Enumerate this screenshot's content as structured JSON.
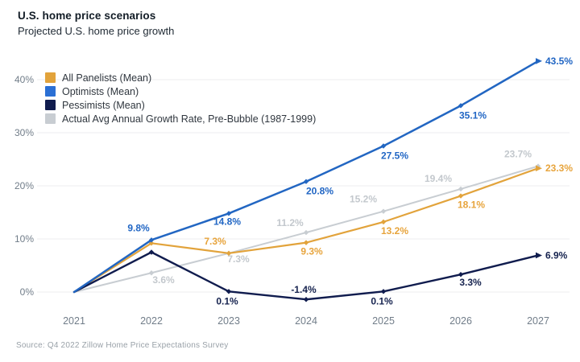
{
  "header": {
    "title": "U.S. home price scenarios",
    "subtitle": "Projected U.S. home price growth"
  },
  "source": "Source: Q4 2022 Zillow Home Price Expectations Survey",
  "colors": {
    "all_panelists": "#E2A33B",
    "optimists": "#2A6FD4",
    "pessimists": "#101C4E",
    "actual_avg": "#C8CDD2",
    "gridline": "#ECEDEF",
    "axis_text": "#717d89"
  },
  "legend": [
    {
      "label": "All Panelists (Mean)",
      "color": "#E2A33B"
    },
    {
      "label": "Optimists (Mean)",
      "color": "#2A6FD4"
    },
    {
      "label": "Pessimists (Mean)",
      "color": "#101C4E"
    },
    {
      "label": "Actual Avg Annual Growth Rate, Pre-Bubble (1987-1999)",
      "color": "#C8CDD2"
    }
  ],
  "chart_data": {
    "type": "line",
    "title": "U.S. home price scenarios",
    "xlabel": "",
    "ylabel": "",
    "x": [
      2021,
      2022,
      2023,
      2024,
      2025,
      2026,
      2027
    ],
    "ylim": [
      -3,
      46
    ],
    "grid": true,
    "legend_position": "top-left-inside",
    "yticks": {
      "values": [
        0,
        10,
        20,
        30,
        40
      ],
      "labels": [
        "0%",
        "10%",
        "20%",
        "30%",
        "40%"
      ]
    },
    "series": [
      {
        "name": "Actual Avg Annual Growth Rate, Pre-Bubble (1987-1999)",
        "color": "#C8CDD2",
        "label_color": "#C3C8CD",
        "stroke_width": 2,
        "end_arrow": false,
        "values": [
          0,
          3.6,
          7.3,
          11.2,
          15.2,
          19.4,
          23.7
        ],
        "labels": [
          null,
          "3.6%",
          "7.3%",
          "11.2%",
          "15.2%",
          "19.4%",
          "23.7%"
        ],
        "label_offsets": [
          null,
          [
            15,
            13
          ],
          [
            12,
            11
          ],
          [
            -20,
            -8
          ],
          [
            -25,
            -11
          ],
          [
            -28,
            -9
          ],
          [
            -25,
            -11
          ]
        ]
      },
      {
        "name": "All Panelists (Mean)",
        "color": "#E2A33B",
        "label_color": "#E7A43C",
        "stroke_width": 2.2,
        "end_arrow": true,
        "values": [
          0,
          9.2,
          7.3,
          9.3,
          13.2,
          18.1,
          23.3
        ],
        "labels": [
          null,
          null,
          "7.3%",
          "9.3%",
          "13.2%",
          "18.1%",
          "23.3%"
        ],
        "label_offsets": [
          null,
          null,
          [
            -17,
            -11
          ],
          [
            7,
            15
          ],
          [
            14,
            15
          ],
          [
            13,
            15
          ],
          [
            9,
            4,
            "start"
          ]
        ]
      },
      {
        "name": "Pessimists (Mean)",
        "color": "#101C4E",
        "label_color": "#16234f",
        "stroke_width": 2.4,
        "end_arrow": true,
        "values": [
          0,
          7.5,
          0.1,
          -1.4,
          0.1,
          3.3,
          6.9
        ],
        "labels": [
          null,
          null,
          "0.1%",
          "-1.4%",
          "0.1%",
          "3.3%",
          "6.9%"
        ],
        "label_offsets": [
          null,
          null,
          [
            -2,
            16
          ],
          [
            -3,
            -8
          ],
          [
            -2,
            16
          ],
          [
            12,
            14
          ],
          [
            9,
            4,
            "start"
          ]
        ]
      },
      {
        "name": "Optimists (Mean)",
        "color": "#2266C2",
        "label_color": "#2166C4",
        "stroke_width": 2.5,
        "end_arrow": true,
        "values": [
          0,
          9.8,
          14.8,
          20.8,
          27.5,
          35.1,
          43.5
        ],
        "labels": [
          null,
          "9.8%",
          "14.8%",
          "20.8%",
          "27.5%",
          "35.1%",
          "43.5%"
        ],
        "label_offsets": [
          null,
          [
            -16,
            -11
          ],
          [
            -2,
            14
          ],
          [
            17,
            16
          ],
          [
            14,
            16
          ],
          [
            15,
            16
          ],
          [
            9,
            4,
            "start"
          ]
        ]
      }
    ]
  }
}
